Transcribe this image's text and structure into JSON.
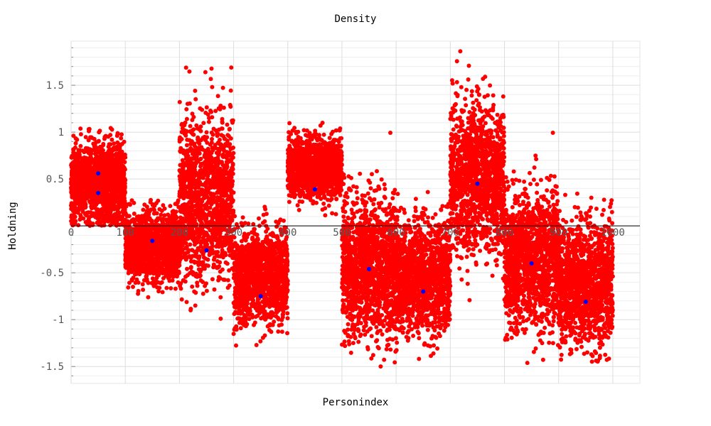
{
  "chart_data": {
    "type": "scatter",
    "title": "Density",
    "xlabel": "Personindex",
    "ylabel": "Holdning",
    "xlim": [
      0,
      1050
    ],
    "ylim": [
      -1.68,
      1.97
    ],
    "x_ticks": [
      {
        "value": 0,
        "label": "0"
      },
      {
        "value": 100,
        "label": "100"
      },
      {
        "value": 200,
        "label": "200"
      },
      {
        "value": 300,
        "label": "300"
      },
      {
        "value": 400,
        "label": "400"
      },
      {
        "value": 500,
        "label": "500"
      },
      {
        "value": 600,
        "label": "600"
      },
      {
        "value": 700,
        "label": "700"
      },
      {
        "value": 800,
        "label": "800"
      },
      {
        "value": 900,
        "label": "900"
      },
      {
        "value": 1000,
        "label": "1000"
      }
    ],
    "y_ticks": [
      {
        "value": 1.5,
        "label": "1.5"
      },
      {
        "value": 1.0,
        "label": "1"
      },
      {
        "value": 0.5,
        "label": "0.5"
      },
      {
        "value": -0.5,
        "label": "-0.5"
      },
      {
        "value": -1.0,
        "label": "-1"
      },
      {
        "value": -1.5,
        "label": "-1.5"
      }
    ],
    "grid": true,
    "series": [
      {
        "color": "#ff0000",
        "clusters": [
          {
            "x_range": [
              0,
              100
            ],
            "mean": 0.45,
            "spread": 0.22,
            "min": 0.0,
            "max": 1.05
          },
          {
            "x_range": [
              100,
              200
            ],
            "mean": -0.22,
            "spread": 0.18,
            "min": -0.8,
            "max": 0.3
          },
          {
            "x_range": [
              200,
              300
            ],
            "mean": 0.3,
            "spread": 0.42,
            "min": -1.05,
            "max": 1.72
          },
          {
            "x_range": [
              300,
              400
            ],
            "mean": -0.55,
            "spread": 0.24,
            "min": -1.35,
            "max": 0.25
          },
          {
            "x_range": [
              400,
              500
            ],
            "mean": 0.62,
            "spread": 0.16,
            "min": 0.1,
            "max": 1.1
          },
          {
            "x_range": [
              500,
              600
            ],
            "mean": -0.45,
            "spread": 0.36,
            "min": -1.6,
            "max": 1.05
          },
          {
            "x_range": [
              600,
              700
            ],
            "mean": -0.55,
            "spread": 0.3,
            "min": -1.45,
            "max": 0.5
          },
          {
            "x_range": [
              700,
              800
            ],
            "mean": 0.5,
            "spread": 0.38,
            "min": -0.85,
            "max": 1.87
          },
          {
            "x_range": [
              800,
              900
            ],
            "mean": -0.38,
            "spread": 0.36,
            "min": -1.5,
            "max": 1.05
          },
          {
            "x_range": [
              900,
              1000
            ],
            "mean": -0.6,
            "spread": 0.32,
            "min": -1.45,
            "max": 0.35
          }
        ]
      },
      {
        "color": "#0000ff",
        "points": [
          {
            "x": 50,
            "y": 0.56
          },
          {
            "x": 50,
            "y": 0.35
          },
          {
            "x": 150,
            "y": -0.16
          },
          {
            "x": 250,
            "y": -0.26
          },
          {
            "x": 350,
            "y": -0.75
          },
          {
            "x": 450,
            "y": 0.39
          },
          {
            "x": 550,
            "y": -0.46
          },
          {
            "x": 650,
            "y": -0.7
          },
          {
            "x": 750,
            "y": 0.45
          },
          {
            "x": 850,
            "y": -0.4
          },
          {
            "x": 950,
            "y": -0.81
          }
        ]
      }
    ]
  }
}
